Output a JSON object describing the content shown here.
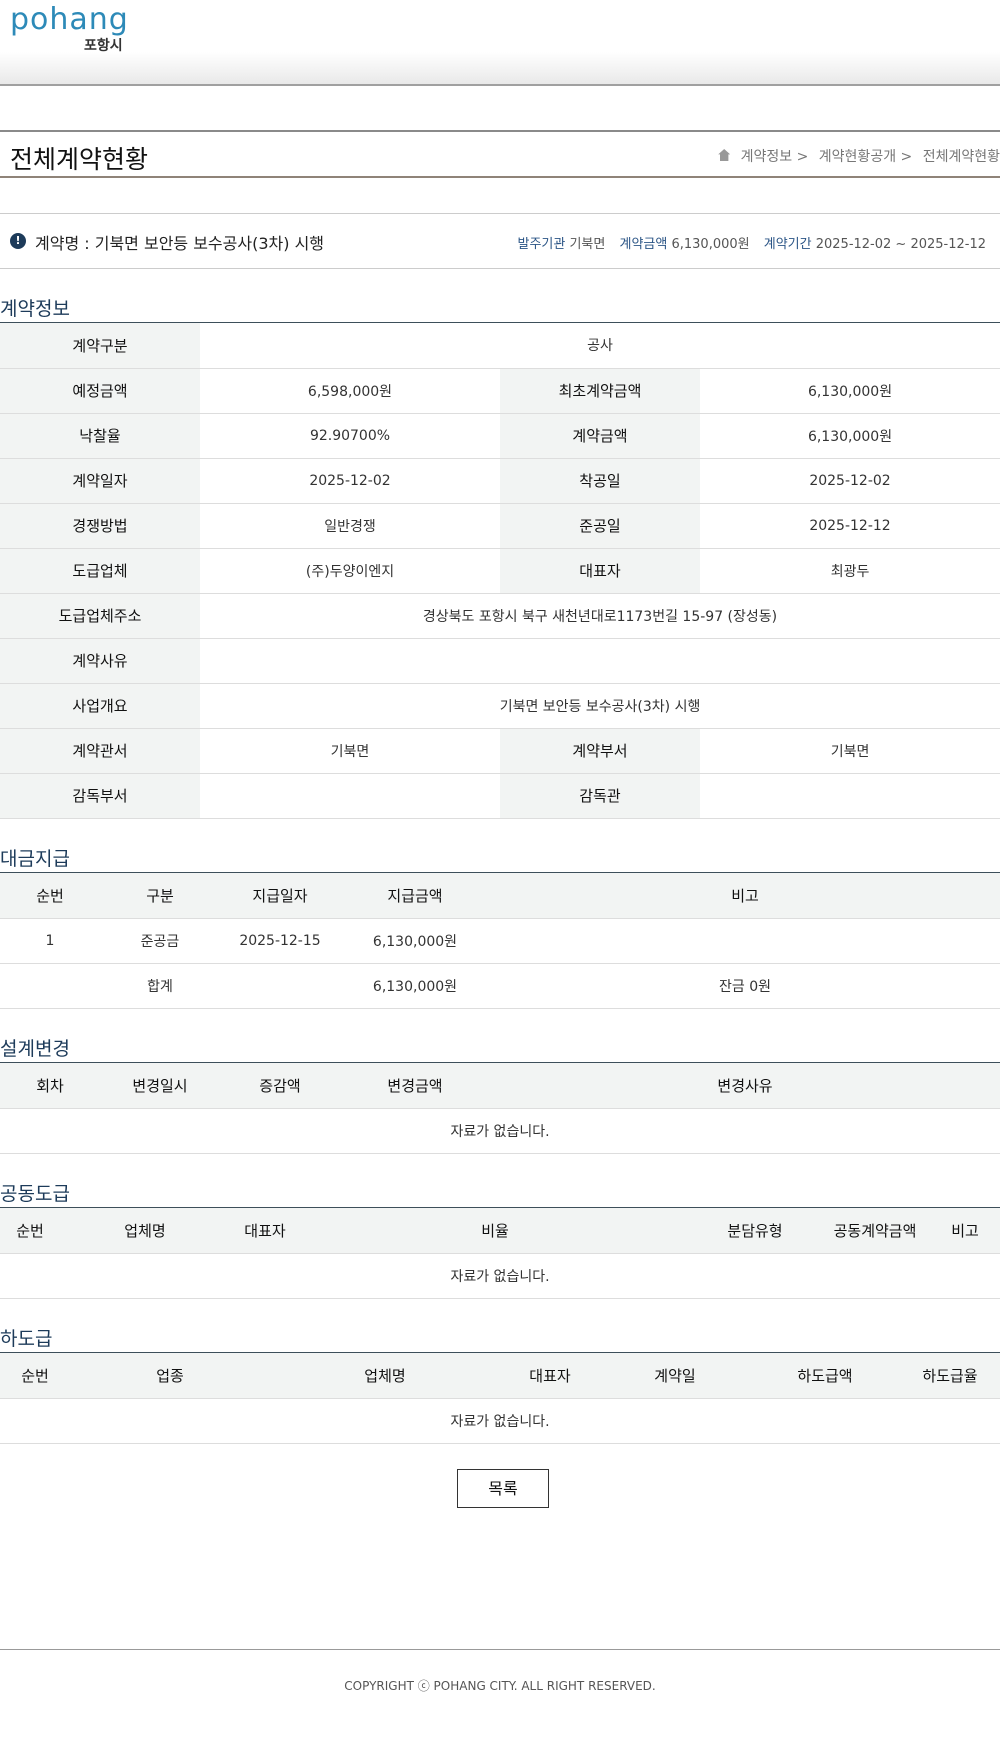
{
  "header": {
    "logo_text": "pohang",
    "logo_sub": "포항시"
  },
  "title": "전체계약현황",
  "breadcrumb": [
    "계약정보 >",
    "계약현황공개 >",
    "전체계약현황"
  ],
  "contract": {
    "icon": "exclamation-icon",
    "name": "계약명 : 기북면 보안등 보수공사(3차) 시행",
    "org_label": "발주기관",
    "org": "기북면",
    "amount_label": "계약금액",
    "amount": "6,130,000원",
    "period_label": "계약기간",
    "period": "2025-12-02 ~ 2025-12-12"
  },
  "info": {
    "heading": "계약정보",
    "type_label": "계약구분",
    "type": "공사",
    "est_label": "예정금액",
    "est": "6,598,000원",
    "first_label": "최초계약금액",
    "first": "6,130,000원",
    "rate_label": "낙찰율",
    "rate": "92.90700%",
    "amt_label": "계약금액",
    "amt": "6,130,000원",
    "date_label": "계약일자",
    "date": "2025-12-02",
    "start_label": "착공일",
    "start": "2025-12-02",
    "method_label": "경쟁방법",
    "method": "일반경쟁",
    "end_label": "준공일",
    "end": "2025-12-12",
    "vendor_label": "도급업체",
    "vendor": "(주)두양이엔지",
    "ceo_label": "대표자",
    "ceo": "최광두",
    "addr_label": "도급업체주소",
    "addr": "경상북도 포항시 북구 새천년대로1173번길 15-97 (장성동)",
    "reason_label": "계약사유",
    "reason": "",
    "summary_label": "사업개요",
    "summary": "기북면 보안등 보수공사(3차) 시행",
    "office_label": "계약관서",
    "office": "기북면",
    "dept_label": "계약부서",
    "dept": "기북면",
    "sup_dept_label": "감독부서",
    "sup_dept": "",
    "sup_label": "감독관",
    "sup": ""
  },
  "payment": {
    "heading": "대금지급",
    "columns": [
      "순번",
      "구분",
      "지급일자",
      "지급금액",
      "비고"
    ],
    "rows": [
      [
        "1",
        "준공금",
        "2025-12-15",
        "6,130,000원",
        ""
      ]
    ],
    "total": {
      "label": "합계",
      "amount": "6,130,000원",
      "note": "잔금 0원"
    }
  },
  "design": {
    "heading": "설계변경",
    "columns": [
      "회차",
      "변경일시",
      "증감액",
      "변경금액",
      "변경사유"
    ],
    "empty": "자료가 없습니다."
  },
  "joint": {
    "heading": "공동도급",
    "columns": [
      "순번",
      "업체명",
      "대표자",
      "비율",
      "분담유형",
      "공동계약금액",
      "비고"
    ],
    "empty": "자료가 없습니다."
  },
  "sub": {
    "heading": "하도급",
    "columns": [
      "순번",
      "업종",
      "업체명",
      "대표자",
      "계약일",
      "하도급액",
      "하도급율"
    ],
    "empty": "자료가 없습니다."
  },
  "list_button": "목록",
  "footer": "COPYRIGHT ⓒ POHANG CITY. ALL RIGHT RESERVED."
}
